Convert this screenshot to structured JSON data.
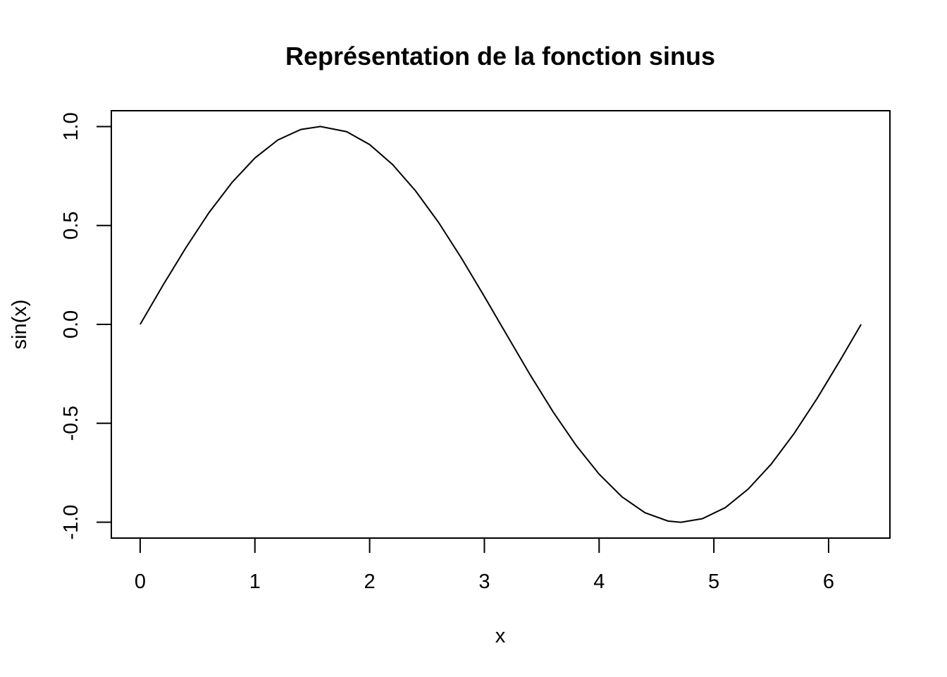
{
  "chart_data": {
    "type": "line",
    "title": "Représentation de la fonction sinus",
    "xlabel": "x",
    "ylabel": "sin(x)",
    "xlim": [
      -0.2513,
      6.5345
    ],
    "ylim": [
      -1.08,
      1.08
    ],
    "x_ticks": [
      "0",
      "1",
      "2",
      "3",
      "4",
      "5",
      "6"
    ],
    "y_ticks": [
      "-1.0",
      "-0.5",
      "0.0",
      "0.5",
      "1.0"
    ],
    "grid": false,
    "legend": "none",
    "line_color": "#000000",
    "series": [
      {
        "x": [
          0,
          0.2,
          0.4,
          0.6,
          0.8,
          1.0,
          1.2,
          1.4,
          1.5708,
          1.8,
          2.0,
          2.2,
          2.4,
          2.6,
          2.8,
          3.0,
          3.1416,
          3.4,
          3.6,
          3.8,
          4.0,
          4.2,
          4.4,
          4.6,
          4.7124,
          4.9,
          5.1,
          5.3,
          5.5,
          5.7,
          5.9,
          6.1,
          6.2832
        ],
        "values": [
          0,
          0.199,
          0.389,
          0.565,
          0.717,
          0.841,
          0.932,
          0.985,
          1,
          0.974,
          0.909,
          0.808,
          0.675,
          0.516,
          0.335,
          0.141,
          0,
          -0.256,
          -0.443,
          -0.612,
          -0.757,
          -0.872,
          -0.952,
          -0.994,
          -1,
          -0.982,
          -0.926,
          -0.832,
          -0.706,
          -0.551,
          -0.374,
          -0.182,
          0
        ]
      }
    ]
  }
}
